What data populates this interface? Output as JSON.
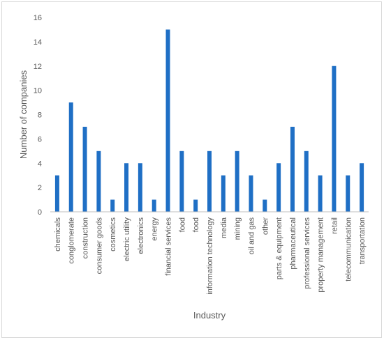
{
  "chart_data": {
    "type": "bar",
    "title": "",
    "xlabel": "Industry",
    "ylabel": "Number of companies",
    "ylim": [
      0,
      16
    ],
    "yticks": [
      0,
      2,
      4,
      6,
      8,
      10,
      12,
      14,
      16
    ],
    "grid": false,
    "legend": "none",
    "bar_color": "#1f6fc5",
    "categories": [
      "chemicals",
      "conglomerate",
      "construction",
      "consumer goods",
      "cosmetics",
      "electric utility",
      "electronics",
      "energy",
      "financial services",
      "food",
      "food",
      "information technology",
      "media",
      "mining",
      "oil and gas",
      "other",
      "parts & equipment",
      "pharmaceutical",
      "professional services",
      "property management",
      "retail",
      "telecommunication",
      "transportation"
    ],
    "values": [
      3,
      9,
      7,
      5,
      1,
      4,
      4,
      1,
      15,
      5,
      1,
      5,
      3,
      5,
      3,
      1,
      4,
      7,
      5,
      3,
      12,
      3,
      4
    ]
  }
}
